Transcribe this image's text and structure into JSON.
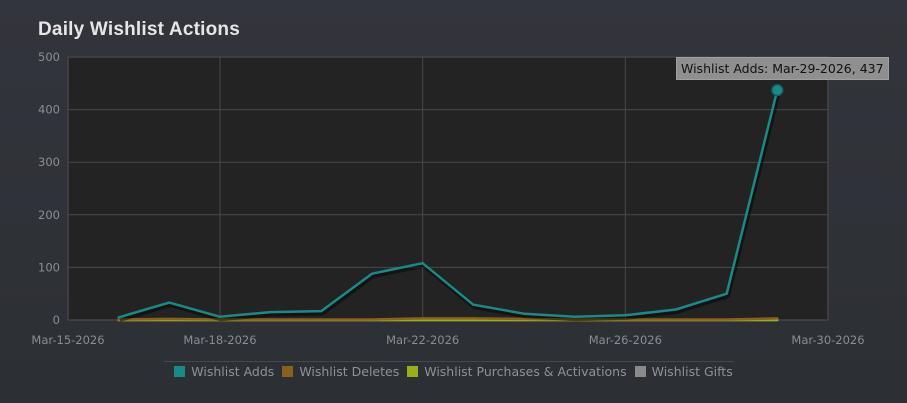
{
  "title": "Daily Wishlist Actions",
  "colors": {
    "background": "#2f3237",
    "plot_background": "#232323",
    "grid": "#48494c",
    "adds": "#1a8a88",
    "deletes": "#8a6020",
    "purchases": "#9aae1a",
    "gifts": "#8a8a8a"
  },
  "tooltip": {
    "text": "Wishlist Adds: Mar-29-2026, 437"
  },
  "chart_data": {
    "type": "line",
    "title": "Daily Wishlist Actions",
    "xlabel": "",
    "ylabel": "",
    "x": [
      "Mar-16-2026",
      "Mar-17-2026",
      "Mar-18-2026",
      "Mar-19-2026",
      "Mar-20-2026",
      "Mar-21-2026",
      "Mar-22-2026",
      "Mar-23-2026",
      "Mar-24-2026",
      "Mar-25-2026",
      "Mar-26-2026",
      "Mar-27-2026",
      "Mar-28-2026",
      "Mar-29-2026"
    ],
    "xlim": [
      "Mar-15-2026",
      "Mar-30-2026"
    ],
    "x_tick_labels": [
      "Mar-15-2026",
      "Mar-18-2026",
      "Mar-22-2026",
      "Mar-26-2026",
      "Mar-30-2026"
    ],
    "ylim": [
      0,
      500
    ],
    "y_ticks": [
      0,
      100,
      200,
      300,
      400,
      500
    ],
    "grid": true,
    "legend": "bottom-center",
    "series": [
      {
        "name": "Wishlist Adds",
        "color": "#1a8a88",
        "values": [
          5,
          33,
          6,
          15,
          17,
          88,
          108,
          29,
          12,
          6,
          9,
          20,
          50,
          437
        ]
      },
      {
        "name": "Wishlist Deletes",
        "color": "#8a6020",
        "values": [
          1,
          2,
          1,
          1,
          1,
          1,
          3,
          3,
          2,
          1,
          1,
          1,
          1,
          3
        ]
      },
      {
        "name": "Wishlist Purchases & Activations",
        "color": "#9aae1a",
        "values": [
          0,
          0,
          0,
          0,
          0,
          0,
          0,
          0,
          0,
          0,
          0,
          0,
          0,
          0
        ]
      },
      {
        "name": "Wishlist Gifts",
        "color": "#8a8a8a",
        "values": [
          0,
          0,
          0,
          0,
          0,
          0,
          0,
          0,
          0,
          0,
          0,
          0,
          0,
          0
        ]
      }
    ]
  }
}
